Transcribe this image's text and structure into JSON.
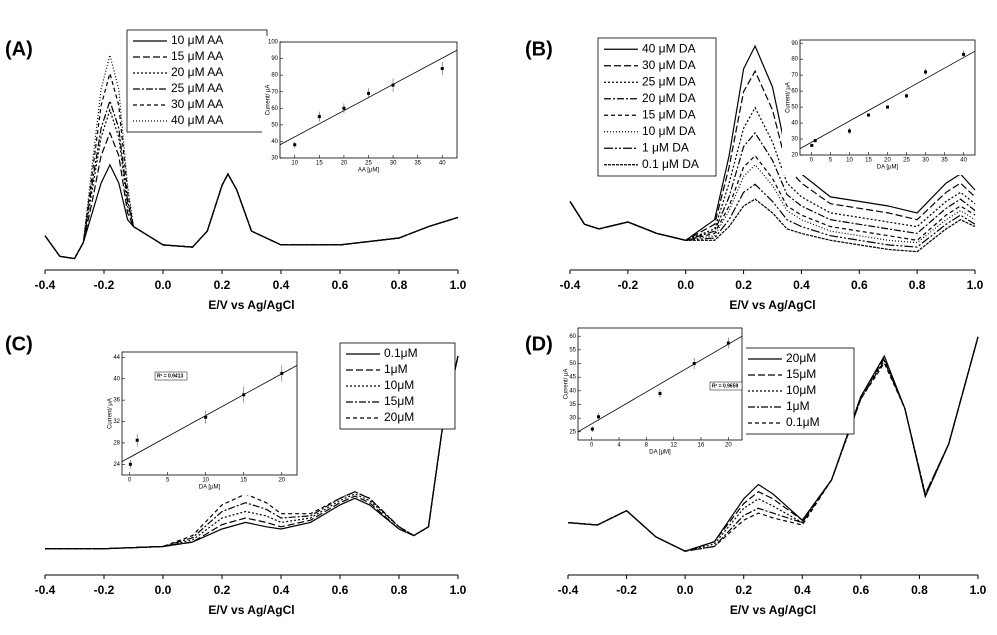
{
  "chart_data": [
    {
      "type": "line",
      "label": "(A)",
      "xlabel": "E/V vs Ag/AgCl",
      "x": [
        -0.4,
        -0.35,
        -0.3,
        -0.27,
        -0.24,
        -0.21,
        -0.18,
        -0.15,
        -0.12,
        -0.1,
        -0.05,
        0,
        0.1,
        0.15,
        0.2,
        0.22,
        0.25,
        0.3,
        0.4,
        0.6,
        0.8,
        0.9,
        1.0
      ],
      "xlim": [
        -0.4,
        1.0
      ],
      "ylim": [
        0,
        105
      ],
      "xticks": [
        -0.4,
        -0.2,
        {
          "value": 0,
          "label": "0.0"
        },
        0.2,
        0.4,
        0.6,
        0.8,
        {
          "value": 1,
          "label": "1.0"
        }
      ],
      "series": [
        {
          "name": "10 μM AA",
          "color": "#000",
          "values": [
            15,
            6,
            5,
            12,
            25,
            38,
            46,
            38,
            22,
            19,
            15,
            11,
            10,
            17,
            37,
            42,
            35,
            17,
            11,
            11,
            14,
            19,
            23
          ]
        },
        {
          "name": "15 μM AA",
          "color": "#000",
          "values": [
            15,
            6,
            5,
            12,
            30,
            50,
            60,
            50,
            25,
            19,
            15,
            11,
            10,
            17,
            37,
            42,
            35,
            17,
            11,
            11,
            14,
            19,
            23
          ]
        },
        {
          "name": "20 μM AA",
          "color": "#000",
          "values": [
            15,
            6,
            5,
            12,
            35,
            58,
            70,
            58,
            28,
            19,
            15,
            11,
            10,
            17,
            37,
            42,
            35,
            17,
            11,
            11,
            14,
            19,
            23
          ]
        },
        {
          "name": "25 μM AA",
          "color": "#000",
          "values": [
            15,
            6,
            5,
            12,
            38,
            62,
            74,
            62,
            30,
            19,
            15,
            11,
            10,
            17,
            37,
            42,
            35,
            17,
            11,
            11,
            14,
            19,
            23
          ]
        },
        {
          "name": "30 μM AA",
          "color": "#000",
          "values": [
            15,
            6,
            5,
            12,
            42,
            72,
            86,
            72,
            34,
            19,
            15,
            11,
            10,
            17,
            37,
            42,
            35,
            17,
            11,
            11,
            14,
            19,
            23
          ]
        },
        {
          "name": "40 μM AA",
          "color": "#000",
          "values": [
            15,
            6,
            5,
            12,
            46,
            79,
            94,
            79,
            37,
            19,
            15,
            11,
            10,
            17,
            37,
            42,
            35,
            17,
            11,
            11,
            14,
            19,
            23
          ]
        }
      ],
      "inset": {
        "type": "scatter",
        "xlabel": "AA [μM]",
        "ylabel": "Current/ μA",
        "x": [
          10,
          15,
          20,
          25,
          30,
          40
        ],
        "values": [
          38,
          55,
          60,
          69,
          74,
          84
        ],
        "errors": [
          2,
          3,
          3,
          3,
          4,
          4
        ],
        "fit": {
          "x": [
            7,
            43
          ],
          "values": [
            38,
            95
          ]
        },
        "xlim": [
          7,
          43
        ],
        "ylim": [
          30,
          100
        ],
        "xticks": [
          10,
          15,
          20,
          25,
          30,
          35,
          40
        ],
        "yticks": [
          30,
          40,
          50,
          60,
          70,
          80,
          90,
          100
        ]
      }
    },
    {
      "type": "line",
      "label": "(B)",
      "xlabel": "E/V vs Ag/AgCl",
      "x": [
        -0.4,
        -0.35,
        -0.3,
        -0.2,
        -0.1,
        0,
        0.1,
        0.15,
        0.2,
        0.24,
        0.3,
        0.35,
        0.4,
        0.5,
        0.6,
        0.7,
        0.8,
        0.9,
        0.95,
        1.0
      ],
      "xlim": [
        -0.4,
        1.0
      ],
      "ylim": [
        0,
        105
      ],
      "xticks": [
        -0.4,
        -0.2,
        {
          "value": 0,
          "label": "0.0"
        },
        0.2,
        0.4,
        0.6,
        0.8,
        {
          "value": 1,
          "label": "1.0"
        }
      ],
      "series": [
        {
          "name": "40 μM DA",
          "color": "#000",
          "values": [
            30,
            20,
            18,
            21,
            16,
            13,
            22,
            50,
            88,
            98,
            80,
            50,
            42,
            32,
            30,
            28,
            25,
            38,
            42,
            35
          ]
        },
        {
          "name": "30 μM DA",
          "color": "#000",
          "values": [
            30,
            20,
            18,
            21,
            16,
            13,
            20,
            45,
            78,
            87,
            70,
            45,
            38,
            29,
            27,
            25,
            22,
            34,
            38,
            32
          ]
        },
        {
          "name": "25 μM DA",
          "color": "#000",
          "values": [
            30,
            20,
            18,
            21,
            16,
            13,
            18,
            38,
            62,
            71,
            56,
            38,
            32,
            25,
            23,
            21,
            19,
            30,
            34,
            29
          ]
        },
        {
          "name": "20 μM DA",
          "color": "#000",
          "values": [
            30,
            20,
            18,
            21,
            16,
            13,
            17,
            32,
            54,
            60,
            48,
            33,
            28,
            22,
            20,
            18,
            16,
            27,
            31,
            26
          ]
        },
        {
          "name": "15 μM DA",
          "color": "#000",
          "values": [
            30,
            20,
            18,
            21,
            16,
            13,
            16,
            28,
            45,
            50,
            40,
            28,
            24,
            19,
            17,
            15,
            13,
            24,
            28,
            24
          ]
        },
        {
          "name": "10 μM DA",
          "color": "#000",
          "values": [
            30,
            20,
            18,
            21,
            16,
            13,
            15,
            26,
            41,
            46,
            37,
            26,
            22,
            17,
            15,
            13,
            12,
            22,
            26,
            22
          ]
        },
        {
          "name": "1 μM DA",
          "color": "#000",
          "values": [
            30,
            20,
            18,
            21,
            16,
            13,
            14,
            22,
            34,
            37.5,
            30,
            22,
            19,
            15,
            13,
            11,
            10,
            20,
            24,
            20
          ]
        },
        {
          "name": "0.1 μM DA",
          "color": "#000",
          "values": [
            30,
            20,
            18,
            21,
            16,
            13,
            13,
            19,
            28,
            31,
            25,
            18,
            16,
            13,
            11,
            9,
            8,
            18,
            22,
            19
          ]
        }
      ],
      "inset": {
        "type": "scatter",
        "xlabel": "DA [μM]",
        "ylabel": "Current/ μA",
        "x": [
          0.1,
          1,
          10,
          15,
          20,
          25,
          30,
          40
        ],
        "values": [
          26,
          29,
          35,
          45,
          50,
          57,
          72,
          83
        ],
        "errors": [
          1,
          1,
          2,
          1,
          1,
          1.5,
          2,
          2.5
        ],
        "fit": {
          "x": [
            -3,
            43
          ],
          "values": [
            24,
            85
          ]
        },
        "xlim": [
          -3,
          43
        ],
        "ylim": [
          20,
          92
        ],
        "xticks": [
          0,
          5,
          10,
          15,
          20,
          25,
          30,
          35,
          40
        ],
        "yticks": [
          20,
          30,
          40,
          50,
          60,
          70,
          80,
          90
        ]
      }
    },
    {
      "type": "line",
      "label": "(C)",
      "xlabel": "E/V vs Ag/AgCl",
      "x": [
        -0.4,
        -0.2,
        0,
        0.1,
        0.2,
        0.28,
        0.35,
        0.4,
        0.5,
        0.6,
        0.65,
        0.7,
        0.8,
        0.85,
        0.9,
        0.95,
        1.0
      ],
      "xlim": [
        -0.4,
        1.0
      ],
      "ylim": [
        0,
        105
      ],
      "xticks": [
        -0.4,
        -0.2,
        {
          "value": 0,
          "label": "0.0"
        },
        0.2,
        0.4,
        0.6,
        0.8,
        {
          "value": 1,
          "label": "1.0"
        }
      ],
      "series": [
        {
          "name": "0.1μM",
          "color": "#000",
          "values": [
            12,
            12,
            13,
            15,
            21,
            24,
            22,
            21,
            24,
            32,
            35,
            32,
            21,
            18,
            22,
            70,
            100
          ]
        },
        {
          "name": "1μM",
          "color": "#000",
          "values": [
            12,
            12,
            13,
            15,
            23,
            26,
            24,
            22,
            25,
            33,
            36,
            33,
            21,
            18,
            22,
            70,
            100
          ]
        },
        {
          "name": "10μM",
          "color": "#000",
          "values": [
            12,
            12,
            13,
            16,
            26,
            29,
            27,
            24,
            26,
            34,
            37,
            34,
            22,
            18,
            22,
            70,
            100
          ]
        },
        {
          "name": "15μM",
          "color": "#000",
          "values": [
            12,
            12,
            13,
            17,
            29,
            33,
            30,
            26,
            27,
            35,
            38,
            35,
            22,
            18,
            22,
            70,
            100
          ]
        },
        {
          "name": "20μM",
          "color": "#000",
          "values": [
            12,
            12,
            13,
            18,
            32,
            37,
            33,
            28,
            28,
            35,
            38,
            35,
            22,
            18,
            22,
            70,
            100
          ]
        }
      ],
      "inset": {
        "type": "scatter",
        "xlabel": "DA [μM]",
        "ylabel": "Current/ μA",
        "r2": "R² = 0.9413",
        "x": [
          0.1,
          1,
          10,
          15,
          20
        ],
        "values": [
          24,
          28.5,
          32.8,
          37,
          41
        ],
        "errors": [
          0.8,
          1.2,
          1.2,
          1.5,
          1.5
        ],
        "fit": {
          "x": [
            -1,
            22
          ],
          "values": [
            24.5,
            42.5
          ]
        },
        "xlim": [
          -1,
          22
        ],
        "ylim": [
          22,
          45
        ],
        "xticks": [
          0,
          5,
          10,
          15,
          20
        ],
        "yticks": [
          24,
          28,
          32,
          36,
          40,
          44
        ]
      }
    },
    {
      "type": "line",
      "label": "(D)",
      "xlabel": "E/V vs Ag/AgCl",
      "x": [
        -0.4,
        -0.3,
        -0.2,
        -0.1,
        0,
        0.1,
        0.2,
        0.25,
        0.3,
        0.4,
        0.5,
        0.6,
        0.68,
        0.75,
        0.82,
        0.9,
        1.0
      ],
      "xlim": [
        -0.4,
        1.0
      ],
      "ylim": [
        0,
        105
      ],
      "xticks": [
        -0.4,
        -0.2,
        {
          "value": 0,
          "label": "0.0"
        },
        0.2,
        0.4,
        0.6,
        0.8,
        {
          "value": 1,
          "label": "1.0"
        }
      ],
      "series": [
        {
          "name": "20μM",
          "color": "#000",
          "values": [
            22,
            21,
            27,
            16,
            10,
            14,
            32,
            38,
            34,
            23,
            40,
            75,
            92,
            70,
            33,
            55,
            100
          ]
        },
        {
          "name": "15μM",
          "color": "#000",
          "values": [
            22,
            21,
            27,
            16,
            10,
            14,
            30,
            35,
            32,
            23,
            40,
            75,
            91,
            70,
            33,
            55,
            100
          ]
        },
        {
          "name": "10μM",
          "color": "#000",
          "values": [
            22,
            21,
            27,
            16,
            10,
            13,
            28,
            32,
            29,
            22,
            40,
            75,
            90,
            70,
            33,
            55,
            100
          ]
        },
        {
          "name": "1μM",
          "color": "#000",
          "values": [
            22,
            21,
            27,
            16,
            10,
            12,
            25,
            28,
            26,
            22,
            40,
            74,
            90,
            70,
            34,
            55,
            100
          ]
        },
        {
          "name": "0.1μM",
          "color": "#000",
          "values": [
            22,
            21,
            27,
            16,
            10,
            12,
            23,
            26,
            24,
            21,
            40,
            74,
            89,
            70,
            34,
            55,
            100
          ]
        }
      ],
      "inset": {
        "type": "scatter",
        "xlabel": "DA [μM]",
        "ylabel": "Current/ μA",
        "r2": "R² = 0.9659",
        "x": [
          0.1,
          1,
          10,
          15,
          20
        ],
        "values": [
          26,
          30.5,
          39,
          50,
          57.5
        ],
        "errors": [
          1,
          1.5,
          1.5,
          2,
          2
        ],
        "fit": {
          "x": [
            -2,
            22
          ],
          "values": [
            25,
            60
          ]
        },
        "xlim": [
          -2,
          22
        ],
        "ylim": [
          22,
          63
        ],
        "xticks": [
          0,
          4,
          8,
          12,
          16,
          20
        ],
        "yticks": [
          25,
          30,
          35,
          40,
          45,
          50,
          55,
          60
        ]
      }
    }
  ]
}
